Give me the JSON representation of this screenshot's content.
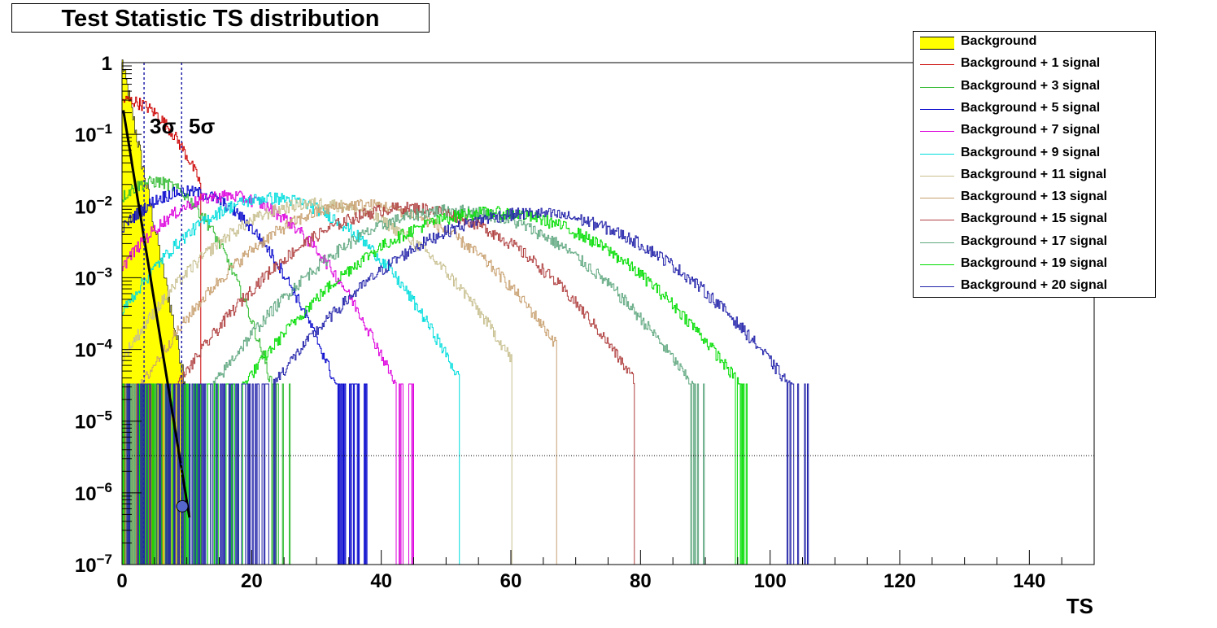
{
  "chart_data": {
    "type": "line",
    "title": "Test Statistic TS distribution",
    "xlabel": "TS",
    "ylabel": "",
    "xlim": [
      0,
      150
    ],
    "ylim": [
      1e-07,
      1
    ],
    "yscale": "log",
    "x_ticks": [
      0,
      20,
      40,
      60,
      80,
      100,
      120,
      140
    ],
    "y_ticks": [
      {
        "base": "1",
        "exp": ""
      },
      {
        "base": "10",
        "exp": "−1"
      },
      {
        "base": "10",
        "exp": "−2"
      },
      {
        "base": "10",
        "exp": "−3"
      },
      {
        "base": "10",
        "exp": "−4"
      },
      {
        "base": "10",
        "exp": "−5"
      },
      {
        "base": "10",
        "exp": "−6"
      },
      {
        "base": "10",
        "exp": "−7"
      }
    ],
    "annotations": {
      "sigma3": {
        "label": "3σ",
        "x": 3.4
      },
      "sigma5": {
        "label": "5σ",
        "x": 9.2
      },
      "threshold_y": 3.3e-06,
      "marker": {
        "x": 9.3,
        "y": 6.5e-07
      }
    },
    "legend_position": "top-right",
    "series": [
      {
        "name": "Background",
        "color": "#ffff00",
        "peak_ts": 0,
        "peak_val": 1.0,
        "width": 3,
        "max_ts": 10
      },
      {
        "name": "Background + 1 signal",
        "color": "#cc0000",
        "peak_ts": 0.5,
        "peak_val": 0.3,
        "width": 5,
        "max_ts": 12
      },
      {
        "name": "Background + 3 signal",
        "color": "#33bb33",
        "peak_ts": 5,
        "peak_val": 0.022,
        "width": 5,
        "max_ts": 26
      },
      {
        "name": "Background + 5 signal",
        "color": "#0000cc",
        "peak_ts": 10,
        "peak_val": 0.016,
        "width": 6.5,
        "max_ts": 38
      },
      {
        "name": "Background + 7 signal",
        "color": "#dd00dd",
        "peak_ts": 16,
        "peak_val": 0.014,
        "width": 7.5,
        "max_ts": 45
      },
      {
        "name": "Background + 9 signal",
        "color": "#00dddd",
        "peak_ts": 23,
        "peak_val": 0.013,
        "width": 8.5,
        "max_ts": 52
      },
      {
        "name": "Background + 11 signal",
        "color": "#c8c090",
        "peak_ts": 30,
        "peak_val": 0.011,
        "width": 9.5,
        "max_ts": 60
      },
      {
        "name": "Background + 13 signal",
        "color": "#c8a070",
        "peak_ts": 37,
        "peak_val": 0.0105,
        "width": 10,
        "max_ts": 67
      },
      {
        "name": "Background + 15 signal",
        "color": "#b04040",
        "peak_ts": 44,
        "peak_val": 0.0095,
        "width": 10.5,
        "max_ts": 79
      },
      {
        "name": "Background + 17 signal",
        "color": "#60a880",
        "peak_ts": 51,
        "peak_val": 0.0088,
        "width": 11,
        "max_ts": 90
      },
      {
        "name": "Background + 19 signal",
        "color": "#00dd00",
        "peak_ts": 57,
        "peak_val": 0.0082,
        "width": 11.5,
        "max_ts": 97
      },
      {
        "name": "Background + 20 signal",
        "color": "#2222aa",
        "peak_ts": 63,
        "peak_val": 0.008,
        "width": 12,
        "max_ts": 106
      }
    ]
  }
}
